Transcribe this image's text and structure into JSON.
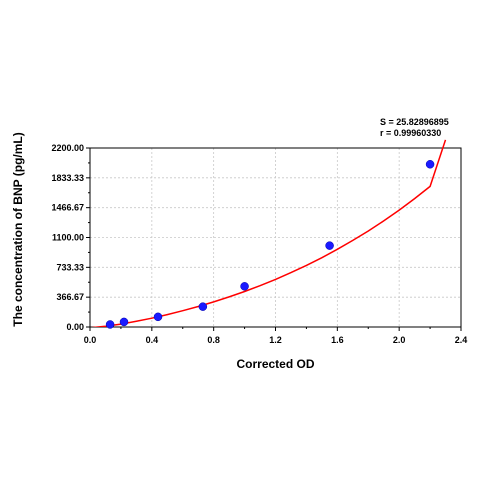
{
  "stats": {
    "s_text": "S = 25.82896895",
    "r_text": "r = 0.99960330"
  },
  "colors": {
    "curve": "#ff0000",
    "point": "#1a1aff",
    "grid": "#c8c8c8",
    "axis": "#000000"
  },
  "chart_data": {
    "type": "scatter",
    "title": "",
    "xlabel": "Corrected OD",
    "ylabel": "The concentration of BNP (pg/mL)",
    "xlim": [
      0,
      2.4
    ],
    "ylim": [
      0,
      2200
    ],
    "x_ticks": [
      0.0,
      0.4,
      0.8,
      1.2,
      1.6,
      2.0,
      2.4
    ],
    "x_tick_labels": [
      "0.0",
      "0.4",
      "0.8",
      "1.2",
      "1.6",
      "2.0",
      "2.4"
    ],
    "y_ticks": [
      0,
      366.67,
      733.33,
      1100,
      1466.67,
      1833.33,
      2200
    ],
    "y_tick_labels": [
      "0.00",
      "366.67",
      "733.33",
      "1100.00",
      "1466.67",
      "1833.33",
      "2200.00"
    ],
    "grid": true,
    "points": {
      "x": [
        0.13,
        0.22,
        0.44,
        0.73,
        1.0,
        1.55,
        2.2
      ],
      "y": [
        31.25,
        62.5,
        125,
        250,
        500,
        1000,
        2000
      ]
    },
    "fit_curve": {
      "x": [
        0.0,
        0.1,
        0.2,
        0.3,
        0.4,
        0.5,
        0.6,
        0.7,
        0.8,
        0.9,
        1.0,
        1.1,
        1.2,
        1.3,
        1.4,
        1.5,
        1.6,
        1.7,
        1.8,
        1.9,
        2.0,
        2.1,
        2.2,
        2.3
      ],
      "y": [
        -10,
        10,
        36,
        70,
        108,
        153,
        200,
        252,
        308,
        370,
        436,
        508,
        585,
        668,
        757,
        852,
        955,
        1064,
        1180,
        1304,
        1437,
        1578,
        1728,
        2300
      ]
    }
  }
}
